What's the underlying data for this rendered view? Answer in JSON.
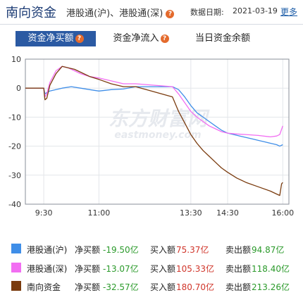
{
  "header": {
    "title": "南向资金",
    "subtitle": "港股通(沪)、港股通(深)",
    "date_label": "数据日期:",
    "date_value": "2021-03-19",
    "more_label": "更多",
    "help_icon": "question-icon",
    "help_glyph": "?"
  },
  "tabs": [
    {
      "label": "资金净买额",
      "active": true,
      "has_help": true
    },
    {
      "label": "资金净流入",
      "active": false,
      "has_help": true
    },
    {
      "label": "当日资金余额",
      "active": false,
      "has_help": false
    }
  ],
  "watermark": {
    "text_cn": "东方财富网",
    "text_en": "eastmoney.com"
  },
  "colors": {
    "hk_sh": "#3f8ee8",
    "hk_sz": "#f26ef2",
    "southbound": "#7a3b0e",
    "accent": "#2b5aa3",
    "positive": "#d0352a",
    "negative": "#2b9a2b",
    "help": "#e46a2c"
  },
  "chart_data": {
    "type": "line",
    "x_ticks": [
      "9:30",
      "11:00",
      "13:30",
      "14:30",
      "16:00"
    ],
    "ylim": [
      -40,
      10
    ],
    "y_ticks": [
      10,
      0,
      -10,
      -20,
      -30,
      -40
    ],
    "grid": true,
    "legend_position": "bottom",
    "series": [
      {
        "name": "港股通(沪)",
        "x": [
          "9:00",
          "9:20",
          "9:30",
          "9:32",
          "9:35",
          "9:40",
          "9:50",
          "10:00",
          "10:15",
          "10:30",
          "10:45",
          "11:00",
          "11:20",
          "11:40",
          "12:00",
          "13:00",
          "13:10",
          "13:20",
          "13:30",
          "13:40",
          "13:50",
          "14:00",
          "14:10",
          "14:20",
          "14:30",
          "14:40",
          "14:50",
          "15:00",
          "15:10",
          "15:20",
          "15:30",
          "15:40",
          "15:50",
          "15:55",
          "16:00"
        ],
        "values": [
          0,
          0,
          0,
          -2,
          -1.5,
          -1,
          -0.5,
          0,
          0.5,
          0,
          -0.5,
          -1,
          -0.5,
          -0.3,
          0.5,
          0.5,
          -0.5,
          -3,
          -6,
          -8.5,
          -10,
          -11.5,
          -13,
          -14.5,
          -15.5,
          -16,
          -16.5,
          -17,
          -17.5,
          -18,
          -18.5,
          -19,
          -19.5,
          -20,
          -19.5
        ]
      },
      {
        "name": "港股通(深)",
        "x": [
          "9:00",
          "9:20",
          "9:30",
          "9:32",
          "9:35",
          "9:40",
          "9:50",
          "10:00",
          "10:10",
          "10:20",
          "10:30",
          "10:45",
          "11:00",
          "11:20",
          "11:40",
          "12:00",
          "13:00",
          "13:10",
          "13:20",
          "13:30",
          "13:40",
          "13:50",
          "14:00",
          "14:10",
          "14:20",
          "14:30",
          "14:45",
          "15:00",
          "15:20",
          "15:40",
          "15:50",
          "15:55",
          "16:00"
        ],
        "values": [
          0,
          0,
          0,
          -3,
          -2,
          2,
          6,
          7.5,
          7,
          6,
          5,
          4,
          3.5,
          2.5,
          1.5,
          1.5,
          0.5,
          -2,
          -5,
          -8,
          -10,
          -11.5,
          -13,
          -14,
          -15,
          -15.5,
          -15.8,
          -16,
          -16.3,
          -16.8,
          -16.5,
          -16,
          -13
        ]
      },
      {
        "name": "南向资金",
        "x": [
          "9:00",
          "9:20",
          "9:30",
          "9:32",
          "9:35",
          "9:40",
          "9:50",
          "10:00",
          "10:10",
          "10:20",
          "10:30",
          "10:45",
          "11:00",
          "11:20",
          "11:40",
          "12:00",
          "13:00",
          "13:10",
          "13:20",
          "13:30",
          "13:40",
          "13:50",
          "14:00",
          "14:10",
          "14:20",
          "14:30",
          "14:45",
          "15:00",
          "15:20",
          "15:40",
          "15:50",
          "15:55",
          "15:58",
          "16:00"
        ],
        "values": [
          0,
          0,
          0,
          -4,
          -3.5,
          1,
          5,
          7.5,
          7,
          6.5,
          5.5,
          4,
          3,
          1.5,
          0.5,
          0.5,
          -3,
          -8,
          -12,
          -16,
          -19,
          -21.5,
          -23.5,
          -25.5,
          -27.5,
          -29,
          -31,
          -32.5,
          -34,
          -35.5,
          -36.5,
          -37,
          -33,
          -32.5
        ]
      }
    ]
  },
  "legend": [
    {
      "name": "港股通(沪)",
      "net_label": "净买额",
      "net_value": "-19.50亿",
      "buy_label": "买入额",
      "buy_value": "75.37亿",
      "sell_label": "卖出额",
      "sell_value": "94.87亿",
      "color_key": "hk_sh"
    },
    {
      "name": "港股通(深)",
      "net_label": "净买额",
      "net_value": "-13.07亿",
      "buy_label": "买入额",
      "buy_value": "105.33亿",
      "sell_label": "卖出额",
      "sell_value": "118.40亿",
      "color_key": "hk_sz"
    },
    {
      "name": "南向资金",
      "net_label": "净买额",
      "net_value": "-32.57亿",
      "buy_label": "买入额",
      "buy_value": "180.70亿",
      "sell_label": "卖出额",
      "sell_value": "213.26亿",
      "color_key": "southbound"
    }
  ]
}
